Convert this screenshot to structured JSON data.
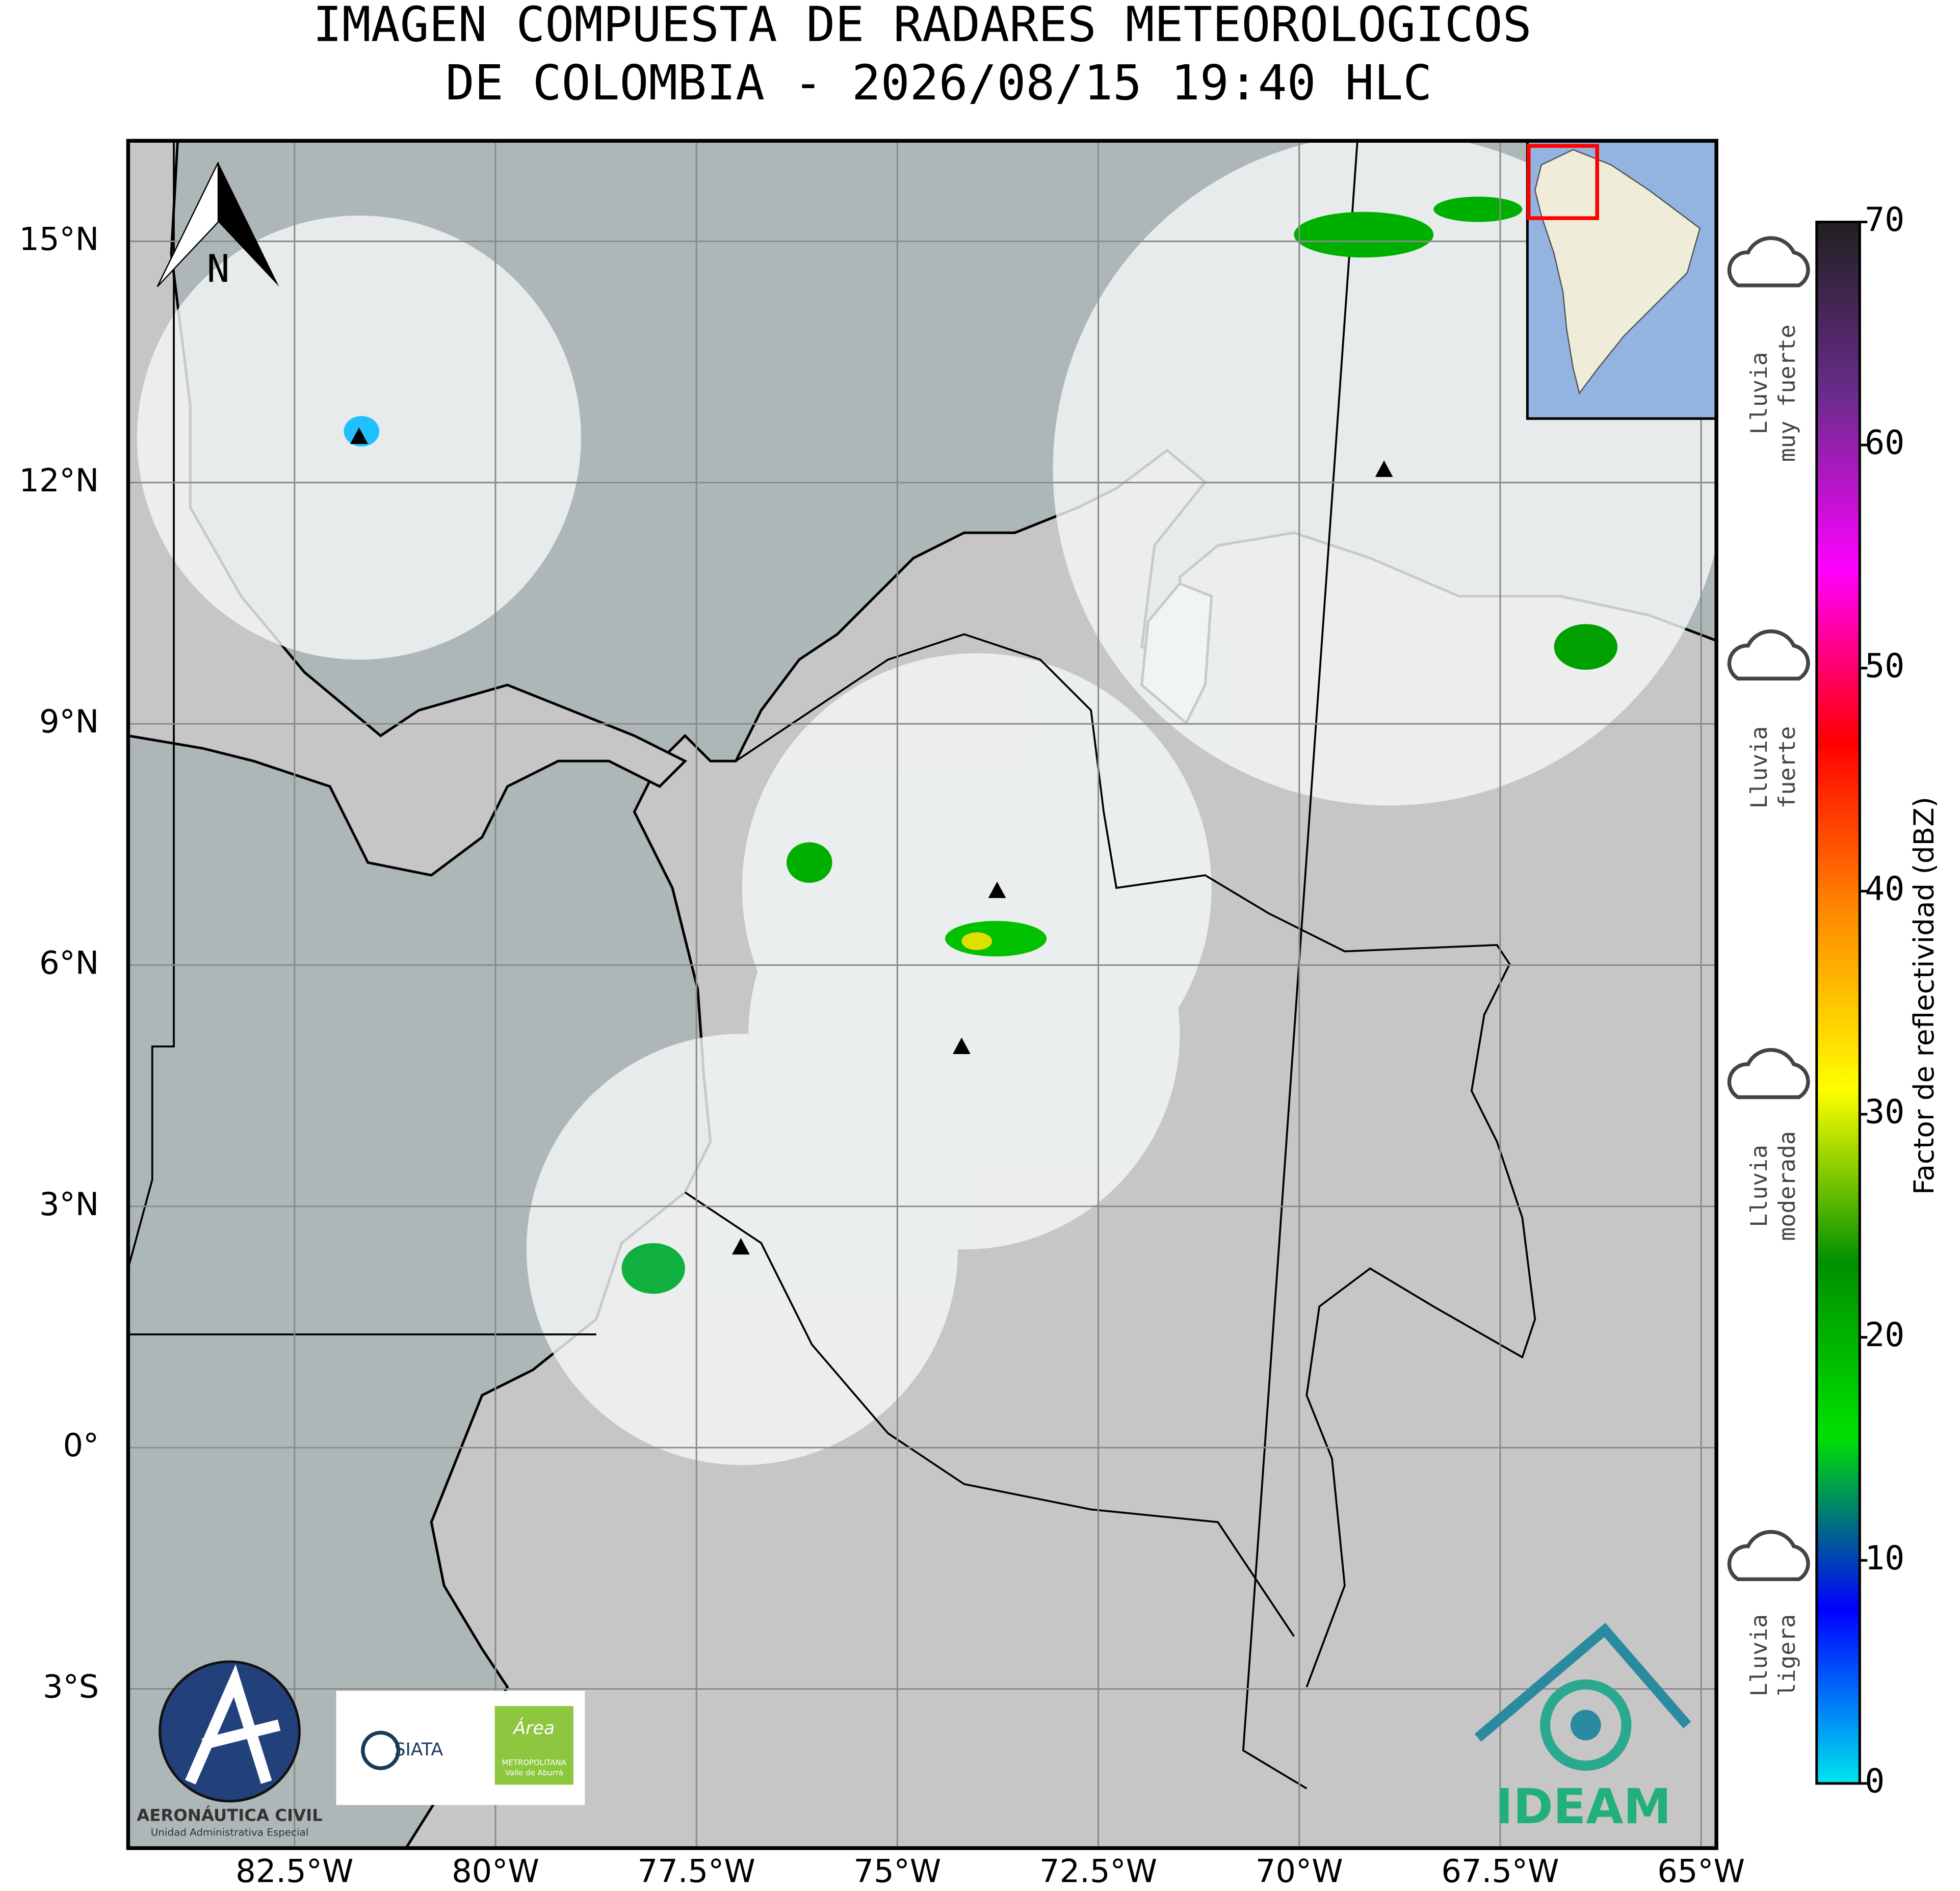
{
  "chart_data": {
    "type": "map",
    "title": [
      "IMAGEN COMPUESTA DE RADARES METEOROLOGICOS",
      "DE COLOMBIA - 2026/08/15 19:40 HLC"
    ],
    "xlim": [
      -84.57,
      -64.81
    ],
    "ylim": [
      -4.98,
      16.25
    ],
    "xticks": [
      {
        "value": -82.5,
        "label": "82.5°W"
      },
      {
        "value": -80,
        "label": "80°W"
      },
      {
        "value": -77.5,
        "label": "77.5°W"
      },
      {
        "value": -75,
        "label": "75°W"
      },
      {
        "value": -72.5,
        "label": "72.5°W"
      },
      {
        "value": -70,
        "label": "70°W"
      },
      {
        "value": -67.5,
        "label": "67.5°W"
      },
      {
        "value": -65,
        "label": "65°W"
      }
    ],
    "yticks": [
      {
        "value": 15,
        "label": "15°N"
      },
      {
        "value": 12,
        "label": "12°N"
      },
      {
        "value": 9,
        "label": "9°N"
      },
      {
        "value": 6,
        "label": "6°N"
      },
      {
        "value": 3,
        "label": "3°N"
      },
      {
        "value": 0,
        "label": "0°"
      },
      {
        "value": -3,
        "label": "3°S"
      }
    ],
    "grid": true,
    "north_label": "N",
    "colorbar": {
      "label": "Factor de reflectividad (dBZ)",
      "lim": [
        0,
        70
      ],
      "ticks": [
        0,
        10,
        20,
        30,
        40,
        50,
        60,
        70
      ],
      "colors": [
        "#00e5ee",
        "#0000ff",
        "#00e000",
        "#009000",
        "#ffff00",
        "#ff8c00",
        "#ff0000",
        "#ff00ff",
        "#6a2c8c",
        "#202020"
      ]
    },
    "rain_labels": [
      {
        "lines": [
          "Lluvia",
          "muy fuerte"
        ]
      },
      {
        "lines": [
          "Lluvia",
          "fuerte"
        ]
      },
      {
        "lines": [
          "Lluvia",
          "moderada"
        ]
      },
      {
        "lines": [
          "Lluvia",
          "ligera"
        ]
      }
    ],
    "logos": {
      "aerocivil": "AERONÁUTICA CIVIL",
      "aerocivil_sub": "Unidad Administrativa Especial",
      "siata": "SIATA",
      "area": "Área",
      "area_sub": [
        "METROPOLITANA",
        "Valle de Aburrá"
      ],
      "ideam": "IDEAM"
    }
  }
}
